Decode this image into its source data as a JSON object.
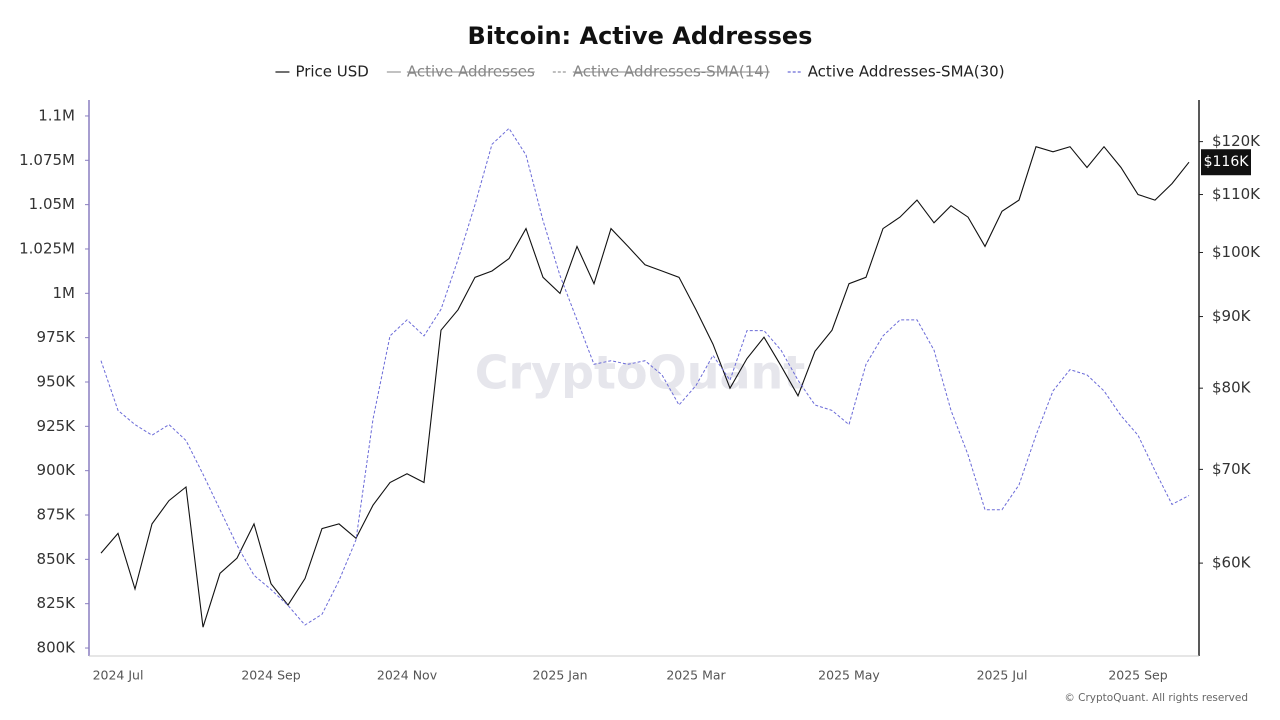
{
  "chart_data": {
    "type": "line",
    "title": "Bitcoin: Active Addresses",
    "watermark": "CryptoQuant",
    "footer": "© CryptoQuant. All rights reserved",
    "last_price_label": "$116K",
    "categories": [
      null,
      "2024 Jul",
      null,
      null,
      null,
      null,
      null,
      null,
      null,
      null,
      "2024 Sep",
      null,
      null,
      null,
      null,
      null,
      null,
      null,
      "2024 Nov",
      null,
      null,
      null,
      null,
      null,
      null,
      null,
      null,
      "2025 Jan",
      null,
      null,
      null,
      null,
      null,
      null,
      null,
      "2025 Mar",
      null,
      null,
      null,
      null,
      null,
      null,
      null,
      null,
      "2025 May",
      null,
      null,
      null,
      null,
      null,
      null,
      null,
      null,
      "2025 Jul",
      null,
      null,
      null,
      null,
      null,
      null,
      null,
      "2025 Sep",
      null,
      null,
      null
    ],
    "series": [
      {
        "name": "Price USD",
        "color": "#111111",
        "axis": "y2",
        "dashed": false,
        "visible": true,
        "values": [
          61000,
          63000,
          57500,
          64000,
          66500,
          68000,
          54000,
          59000,
          60500,
          64000,
          58000,
          56000,
          58500,
          63500,
          64000,
          62500,
          66000,
          68500,
          69500,
          68500,
          88000,
          91000,
          96000,
          97000,
          99000,
          104000,
          96000,
          93500,
          101000,
          95000,
          104000,
          101000,
          98000,
          97000,
          96000,
          91000,
          86000,
          80000,
          84000,
          87000,
          83000,
          79000,
          85000,
          88000,
          95000,
          96000,
          104000,
          106000,
          109000,
          105000,
          108000,
          106000,
          101000,
          107000,
          109000,
          119000,
          118000,
          119000,
          115000,
          119000,
          115000,
          110000,
          109000,
          112000,
          116000
        ]
      },
      {
        "name": "Active Addresses",
        "color": "#333333",
        "visible": false
      },
      {
        "name": "Active Addresses-SMA(14)",
        "color": "#9a9ae0",
        "visible": false
      },
      {
        "name": "Active Addresses-SMA(30)",
        "color": "#6b6bd8",
        "axis": "y",
        "dashed": true,
        "visible": true,
        "values": [
          962000,
          934000,
          926000,
          920000,
          926000,
          917000,
          898000,
          878000,
          858000,
          841000,
          833000,
          824000,
          813000,
          819000,
          838000,
          861000,
          929000,
          976000,
          985000,
          976000,
          991000,
          1019000,
          1050000,
          1084000,
          1093000,
          1078000,
          1041000,
          1010000,
          985000,
          960000,
          962000,
          960000,
          962000,
          954000,
          937000,
          948000,
          965000,
          951000,
          979000,
          979000,
          968000,
          951000,
          937000,
          934000,
          926000,
          960000,
          976000,
          985000,
          985000,
          968000,
          934000,
          909000,
          878000,
          878000,
          892000,
          920000,
          945000,
          957000,
          954000,
          945000,
          931000,
          920000,
          900000,
          881000,
          886000
        ]
      }
    ],
    "ylim": [
      795500,
      1109000
    ],
    "yticks": [
      {
        "value": 800000,
        "label": "800K"
      },
      {
        "value": 825000,
        "label": "825K"
      },
      {
        "value": 850000,
        "label": "850K"
      },
      {
        "value": 875000,
        "label": "875K"
      },
      {
        "value": 900000,
        "label": "900K"
      },
      {
        "value": 925000,
        "label": "925K"
      },
      {
        "value": 950000,
        "label": "950K"
      },
      {
        "value": 975000,
        "label": "975K"
      },
      {
        "value": 1000000,
        "label": "1M"
      },
      {
        "value": 1025000,
        "label": "1.025M"
      },
      {
        "value": 1050000,
        "label": "1.05M"
      },
      {
        "value": 1075000,
        "label": "1.075M"
      },
      {
        "value": 1100000,
        "label": "1.1M"
      }
    ],
    "y2lim": [
      51500,
      128500
    ],
    "y2_log": true,
    "y2ticks": [
      {
        "value": 60000,
        "label": "$60K"
      },
      {
        "value": 70000,
        "label": "$70K"
      },
      {
        "value": 80000,
        "label": "$80K"
      },
      {
        "value": 90000,
        "label": "$90K"
      },
      {
        "value": 100000,
        "label": "$100K"
      },
      {
        "value": 110000,
        "label": "$110K"
      },
      {
        "value": 120000,
        "label": "$120K"
      }
    ],
    "grid": false
  }
}
